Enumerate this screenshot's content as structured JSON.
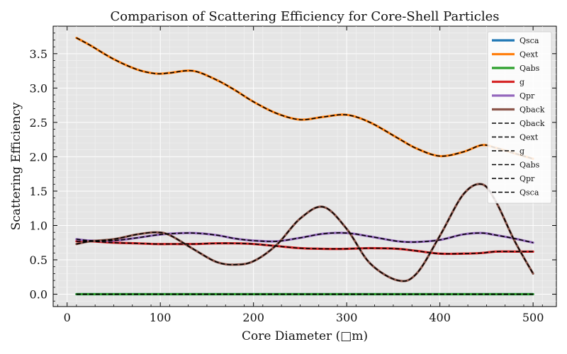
{
  "chart_data": {
    "type": "line",
    "title": "Comparison of Scattering Efficiency for Core-Shell Particles",
    "xlabel": "Core Diameter (□m)",
    "ylabel": "Scattering Efficiency",
    "xlim": [
      -15,
      525
    ],
    "ylim": [
      -0.18,
      3.9
    ],
    "xticks": [
      0,
      100,
      200,
      300,
      400,
      500
    ],
    "yticks": [
      0.0,
      0.5,
      1.0,
      1.5,
      2.0,
      2.5,
      3.0,
      3.5
    ],
    "grid": true,
    "legend_position": "top-right",
    "x": [
      10,
      25,
      50,
      75,
      95,
      110,
      135,
      160,
      180,
      200,
      225,
      250,
      275,
      300,
      325,
      355,
      375,
      400,
      425,
      445,
      460,
      480,
      500
    ],
    "series": [
      {
        "name": "Qsca",
        "color": "#1f77b4",
        "style": "solid",
        "values": [
          0,
          0,
          0,
          0,
          0,
          0,
          0,
          0,
          0,
          0,
          0,
          0,
          0,
          0,
          0,
          0,
          0,
          0,
          0,
          0,
          0,
          0,
          0
        ]
      },
      {
        "name": "Qext",
        "color": "#ff7f0e",
        "style": "solid",
        "values": [
          3.73,
          3.62,
          3.42,
          3.27,
          3.21,
          3.22,
          3.25,
          3.12,
          2.97,
          2.8,
          2.63,
          2.54,
          2.58,
          2.61,
          2.5,
          2.27,
          2.12,
          2.01,
          2.07,
          2.17,
          2.13,
          2.05,
          1.97
        ]
      },
      {
        "name": "Qabs",
        "color": "#2ca02c",
        "style": "solid",
        "values": [
          0,
          0,
          0,
          0,
          0,
          0,
          0,
          0,
          0,
          0,
          0,
          0,
          0,
          0,
          0,
          0,
          0,
          0,
          0,
          0,
          0,
          0,
          0
        ]
      },
      {
        "name": "g",
        "color": "#d62728",
        "style": "solid",
        "values": [
          0.77,
          0.77,
          0.75,
          0.74,
          0.73,
          0.73,
          0.73,
          0.74,
          0.74,
          0.73,
          0.7,
          0.67,
          0.66,
          0.66,
          0.67,
          0.66,
          0.63,
          0.59,
          0.59,
          0.6,
          0.62,
          0.62,
          0.62
        ]
      },
      {
        "name": "Qpr",
        "color": "#9467bd",
        "style": "solid",
        "values": [
          0.8,
          0.78,
          0.78,
          0.82,
          0.86,
          0.88,
          0.89,
          0.86,
          0.81,
          0.78,
          0.77,
          0.82,
          0.88,
          0.89,
          0.84,
          0.77,
          0.76,
          0.79,
          0.87,
          0.89,
          0.86,
          0.81,
          0.75
        ]
      },
      {
        "name": "Qback",
        "color": "#8c564b",
        "style": "solid",
        "values": [
          0.73,
          0.77,
          0.8,
          0.87,
          0.9,
          0.86,
          0.66,
          0.47,
          0.43,
          0.48,
          0.72,
          1.1,
          1.27,
          0.95,
          0.45,
          0.2,
          0.3,
          0.85,
          1.45,
          1.6,
          1.35,
          0.78,
          0.3
        ]
      },
      {
        "name": "Qback",
        "color": "#000000",
        "style": "dashed",
        "ref": "Qback"
      },
      {
        "name": "Qext",
        "color": "#000000",
        "style": "dashed",
        "ref": "Qext"
      },
      {
        "name": "g",
        "color": "#000000",
        "style": "dashed",
        "ref": "g"
      },
      {
        "name": "Qabs",
        "color": "#000000",
        "style": "dashed",
        "ref": "Qabs"
      },
      {
        "name": "Qpr",
        "color": "#000000",
        "style": "dashed",
        "ref": "Qpr"
      },
      {
        "name": "Qsca",
        "color": "#000000",
        "style": "dashed",
        "ref": "Qsca"
      }
    ]
  }
}
